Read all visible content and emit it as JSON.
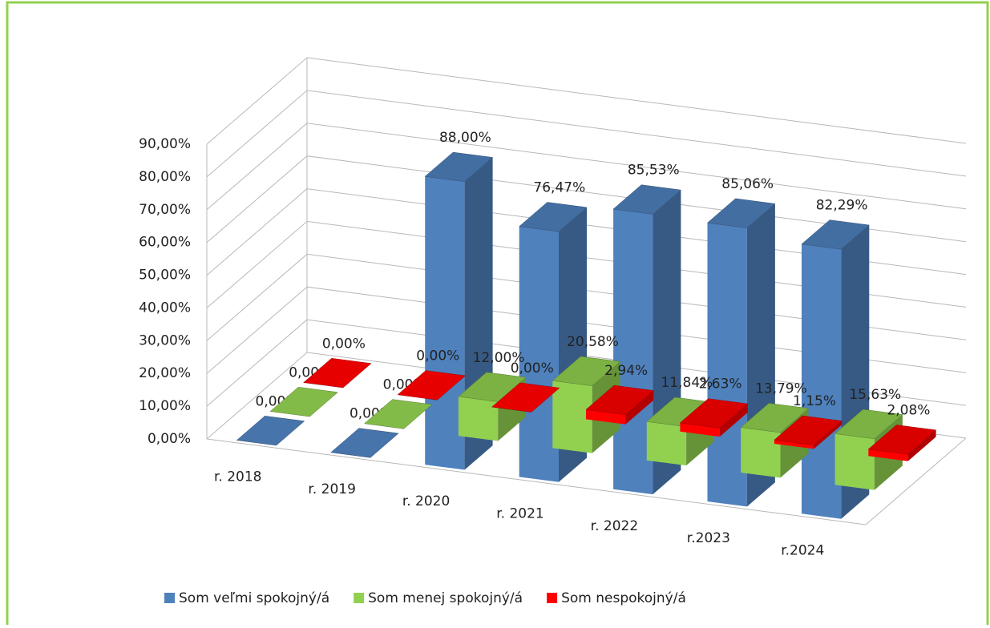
{
  "chart_data": {
    "type": "bar3d",
    "categories": [
      "r. 2018",
      "r. 2019",
      "r. 2020",
      "r. 2021",
      "r. 2022",
      "r.2023",
      "r.2024"
    ],
    "series": [
      {
        "name": "Som veľmi spokojný/á",
        "color": "#4f81bd",
        "values": [
          0,
          0,
          88,
          76.47,
          85.53,
          85.06,
          82.29
        ],
        "value_labels": [
          "0,00%",
          "0,00%",
          "88,00%",
          "76,47%",
          "85,53%",
          "85,06%",
          "82,29%"
        ]
      },
      {
        "name": "Som menej spokojný/á",
        "color": "#92d050",
        "values": [
          0,
          0,
          12,
          20.58,
          11.84,
          13.79,
          15.63
        ],
        "value_labels": [
          "0,00%",
          "0,00%",
          "12,00%",
          "20,58%",
          "11,84%",
          "13,79%",
          "15,63%"
        ]
      },
      {
        "name": "Som nespokojný/á",
        "color": "#ff0000",
        "values": [
          0,
          0,
          0,
          2.94,
          2.63,
          1.15,
          2.08
        ],
        "value_labels": [
          "0,00%",
          "0,00%",
          "0,00%",
          "2,94%",
          "2,63%",
          "1,15%",
          "2,08%"
        ]
      }
    ],
    "ylim": [
      0,
      90
    ],
    "yticks": [
      {
        "value": 0,
        "label": "0,00%"
      },
      {
        "value": 10,
        "label": "10,00%"
      },
      {
        "value": 20,
        "label": "20,00%"
      },
      {
        "value": 30,
        "label": "30,00%"
      },
      {
        "value": 40,
        "label": "40,00%"
      },
      {
        "value": 50,
        "label": "50,00%"
      },
      {
        "value": 60,
        "label": "60,00%"
      },
      {
        "value": 70,
        "label": "70,00%"
      },
      {
        "value": 80,
        "label": "80,00%"
      },
      {
        "value": 90,
        "label": "90,00%"
      }
    ],
    "grid": true,
    "legend": "bottom"
  }
}
